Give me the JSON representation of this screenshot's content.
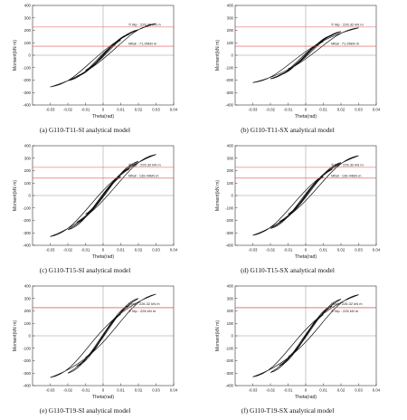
{
  "panels": [
    {
      "caption": "(a)  G110-T11-SI  analytical  model",
      "ylabel": "Moment(kN m)",
      "xlabel": "Theta(rad)",
      "mp_label": "© Mp : 226.32 kN  m",
      "mfail_label": "Mfail : 71.95kN  m"
    },
    {
      "caption": "(b)  G110-T11-SX  analytical  model",
      "ylabel": "Moment(kN m)",
      "xlabel": "Theta(rad)",
      "mp_label": "© Mp : 226.32 kN  m",
      "mfail_label": "Mfail : 71.95kN  m"
    },
    {
      "caption": "(c)  G110-T15-SI  analytical  model",
      "ylabel": "Moment(kN m)",
      "xlabel": "Theta(rad)",
      "mp_label": "© Mp : 226.32 kN  m",
      "mfail_label": "Mfail : 139.44kN  m"
    },
    {
      "caption": "(d)  G110-T15-SX  analytical  model",
      "ylabel": "Moment(kN m)",
      "xlabel": "Theta(rad)",
      "mp_label": "© Mp : 226.32 kN  m",
      "mfail_label": "Mfail : 139.44kN  m"
    },
    {
      "caption": "(e)  G110-T19-SI  analytical  model",
      "ylabel": "Moment(kN m)",
      "xlabel": "Theta(rad)",
      "mp_label": "© Mp : 226 kN  m",
      "mfail_label": "Mfail : 226.32 kN  m"
    },
    {
      "caption": "(f)  G110-T19-SX  analytical  model",
      "ylabel": "Moment(kN m)",
      "xlabel": "Theta(rad)",
      "mp_label": "© Mp : 226 kN  m",
      "mfail_label": "Mfail : 226.32 kN  m"
    }
  ],
  "colors": {
    "mp_line": "#e05050",
    "curve": "#111111",
    "axis": "#333333"
  },
  "chart_data": [
    {
      "type": "line",
      "xlim": [
        -0.04,
        0.04
      ],
      "ylim": [
        -400,
        400
      ],
      "xticks": [
        -0.03,
        -0.02,
        -0.01,
        0,
        0.01,
        0.02,
        0.03,
        0.04
      ],
      "yticks": [
        -400,
        -300,
        -200,
        -100,
        0,
        100,
        200,
        300,
        400
      ],
      "hlines": [
        {
          "label": "Mp",
          "y": 226.32
        },
        {
          "label": "Mfail",
          "y": 71.95
        }
      ],
      "loops": [
        {
          "xmax": 0.01,
          "ymax": 120,
          "w": 0.0
        },
        {
          "xmax": 0.015,
          "ymax": 170,
          "w": 0.35
        },
        {
          "xmax": 0.02,
          "ymax": 205,
          "w": 0.6
        },
        {
          "xmax": 0.03,
          "ymax": 255,
          "w": 1.0
        }
      ]
    },
    {
      "type": "line",
      "xlim": [
        -0.04,
        0.04
      ],
      "ylim": [
        -400,
        400
      ],
      "xticks": [
        -0.03,
        -0.02,
        -0.01,
        0,
        0.01,
        0.02,
        0.03,
        0.04
      ],
      "yticks": [
        -400,
        -300,
        -200,
        -100,
        0,
        100,
        200,
        300,
        400
      ],
      "hlines": [
        {
          "label": "Mp",
          "y": 226.32
        },
        {
          "label": "Mfail",
          "y": 71.95
        }
      ],
      "loops": [
        {
          "xmax": 0.01,
          "ymax": 110,
          "w": 0.0
        },
        {
          "xmax": 0.015,
          "ymax": 160,
          "w": 0.4
        },
        {
          "xmax": 0.02,
          "ymax": 190,
          "w": 0.7
        },
        {
          "xmax": 0.03,
          "ymax": 220,
          "w": 1.1
        }
      ]
    },
    {
      "type": "line",
      "xlim": [
        -0.04,
        0.04
      ],
      "ylim": [
        -400,
        400
      ],
      "xticks": [
        -0.03,
        -0.02,
        -0.01,
        0,
        0.01,
        0.02,
        0.03,
        0.04
      ],
      "yticks": [
        -400,
        -300,
        -200,
        -100,
        0,
        100,
        200,
        300,
        400
      ],
      "hlines": [
        {
          "label": "Mp",
          "y": 226.32
        },
        {
          "label": "Mfail",
          "y": 139.44
        }
      ],
      "loops": [
        {
          "xmax": 0.01,
          "ymax": 150,
          "w": 0.0
        },
        {
          "xmax": 0.015,
          "ymax": 215,
          "w": 0.25
        },
        {
          "xmax": 0.02,
          "ymax": 275,
          "w": 0.5
        },
        {
          "xmax": 0.03,
          "ymax": 330,
          "w": 1.0
        }
      ]
    },
    {
      "type": "line",
      "xlim": [
        -0.04,
        0.04
      ],
      "ylim": [
        -400,
        400
      ],
      "xticks": [
        -0.03,
        -0.02,
        -0.01,
        0,
        0.01,
        0.02,
        0.03,
        0.04
      ],
      "yticks": [
        -400,
        -300,
        -200,
        -100,
        0,
        100,
        200,
        300,
        400
      ],
      "hlines": [
        {
          "label": "Mp",
          "y": 226.32
        },
        {
          "label": "Mfail",
          "y": 139.44
        }
      ],
      "loops": [
        {
          "xmax": 0.01,
          "ymax": 150,
          "w": 0.0
        },
        {
          "xmax": 0.015,
          "ymax": 210,
          "w": 0.3
        },
        {
          "xmax": 0.02,
          "ymax": 265,
          "w": 0.55
        },
        {
          "xmax": 0.03,
          "ymax": 320,
          "w": 1.05
        }
      ]
    },
    {
      "type": "line",
      "xlim": [
        -0.04,
        0.04
      ],
      "ylim": [
        -400,
        400
      ],
      "xticks": [
        -0.03,
        -0.02,
        -0.01,
        0,
        0.01,
        0.02,
        0.03,
        0.04
      ],
      "yticks": [
        -400,
        -300,
        -200,
        -100,
        0,
        100,
        200,
        300,
        400
      ],
      "hlines": [
        {
          "label": "Mp",
          "y": 226
        },
        {
          "label": "Mfail",
          "y": 226.32
        }
      ],
      "loops": [
        {
          "xmax": 0.01,
          "ymax": 175,
          "w": 0.0
        },
        {
          "xmax": 0.015,
          "ymax": 245,
          "w": 0.2
        },
        {
          "xmax": 0.02,
          "ymax": 300,
          "w": 0.45
        },
        {
          "xmax": 0.03,
          "ymax": 335,
          "w": 1.2
        }
      ]
    },
    {
      "type": "line",
      "xlim": [
        -0.04,
        0.04
      ],
      "ylim": [
        -400,
        400
      ],
      "xticks": [
        -0.03,
        -0.02,
        -0.01,
        0,
        0.01,
        0.02,
        0.03,
        0.04
      ],
      "yticks": [
        -400,
        -300,
        -200,
        -100,
        0,
        100,
        200,
        300,
        400
      ],
      "hlines": [
        {
          "label": "Mp",
          "y": 226
        },
        {
          "label": "Mfail",
          "y": 226.32
        }
      ],
      "loops": [
        {
          "xmax": 0.01,
          "ymax": 170,
          "w": 0.0
        },
        {
          "xmax": 0.015,
          "ymax": 240,
          "w": 0.2
        },
        {
          "xmax": 0.02,
          "ymax": 295,
          "w": 0.45
        },
        {
          "xmax": 0.03,
          "ymax": 330,
          "w": 1.2
        }
      ]
    }
  ]
}
